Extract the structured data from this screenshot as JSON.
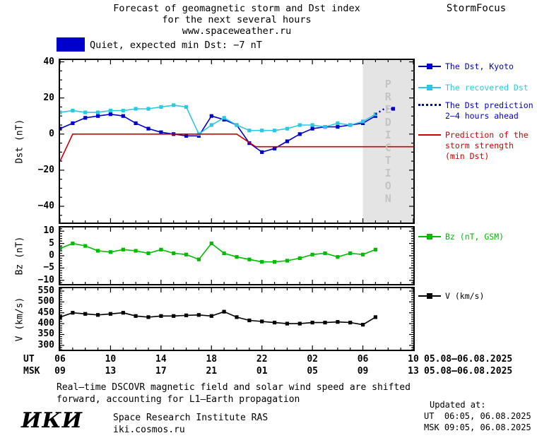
{
  "header": {
    "title_line1": "Forecast of geomagnetic storm and Dst index",
    "title_line2": "for the next several hours",
    "title_line3": "www.spaceweather.ru",
    "brand": "StormFocus"
  },
  "banner": {
    "swatch_color": "#0000cc",
    "text": "Quiet, expected min Dst: −7 nT"
  },
  "chart_data": [
    {
      "type": "line",
      "ylabel": "Dst (nT)",
      "xlim": [
        6,
        34
      ],
      "ylim": [
        -49,
        41
      ],
      "yticks": [
        40,
        20,
        0,
        -20,
        -40
      ],
      "yminor": 5,
      "xticks_hours": [
        6,
        10,
        14,
        18,
        22,
        26,
        30,
        34
      ],
      "prediction_band": {
        "x_start": 30,
        "x_end": 34,
        "label": "PREDICTION",
        "fill": "#e4e4e4",
        "label_color": "#c4c4c4"
      },
      "series": [
        {
          "name": "The Dst, Kyoto",
          "color": "#0000cc",
          "style": "line-square",
          "x": [
            6,
            7,
            8,
            9,
            10,
            11,
            12,
            13,
            14,
            15,
            16,
            17,
            18,
            19,
            20,
            21,
            22,
            23,
            24,
            25,
            26,
            27,
            28,
            29,
            30,
            31
          ],
          "y": [
            3,
            6,
            9,
            10,
            11,
            10,
            6,
            3,
            1,
            0,
            -1,
            -1,
            10,
            8,
            5,
            -5,
            -10,
            -8,
            -4,
            0,
            3,
            4,
            4,
            5,
            6,
            10
          ]
        },
        {
          "name": "The recovered Dst",
          "color": "#2bc8e4",
          "style": "line-square",
          "x": [
            6,
            7,
            8,
            9,
            10,
            11,
            12,
            13,
            14,
            15,
            16,
            17,
            18,
            19,
            20,
            21,
            22,
            23,
            24,
            25,
            26,
            27,
            28,
            29,
            30,
            31
          ],
          "y": [
            12,
            13,
            12,
            12,
            13,
            13,
            14,
            14,
            15,
            16,
            15,
            0,
            5,
            9,
            5,
            2,
            2,
            2,
            3,
            5,
            5,
            4,
            6,
            5,
            7,
            11
          ]
        },
        {
          "name": "The Dst prediction 2–4 hours ahead",
          "color": "#0000cc",
          "style": "dotted",
          "end_square": true,
          "x": [
            31,
            31.7,
            32.4
          ],
          "y": [
            11,
            14,
            14
          ]
        },
        {
          "name": "Prediction of the storm strength (min Dst)",
          "color": "#cc0000",
          "style": "line",
          "x": [
            6,
            7,
            20,
            21.5,
            34
          ],
          "y": [
            -15,
            0,
            0,
            -7,
            -7
          ]
        }
      ]
    },
    {
      "type": "line",
      "ylabel": "Bz (nT)",
      "xlim": [
        6,
        34
      ],
      "ylim": [
        -11.5,
        11.5
      ],
      "yticks": [
        10,
        5,
        0,
        -5,
        -10
      ],
      "yminor": 1,
      "xticks_hours": [
        6,
        10,
        14,
        18,
        22,
        26,
        30,
        34
      ],
      "series": [
        {
          "name": "Bz (nT, GSM)",
          "color": "#00bb00",
          "style": "line-square",
          "x": [
            6,
            7,
            8,
            9,
            10,
            11,
            12,
            13,
            14,
            15,
            16,
            17,
            18,
            19,
            20,
            21,
            22,
            23,
            24,
            25,
            26,
            27,
            28,
            29,
            30,
            31
          ],
          "y": [
            3,
            5,
            4,
            2,
            1.5,
            2.5,
            2,
            1,
            2.5,
            1,
            0.5,
            -1.5,
            5,
            1,
            -0.5,
            -1.5,
            -2.5,
            -2.5,
            -2,
            -1,
            0.5,
            1,
            -0.5,
            1,
            0.5,
            2.5
          ]
        }
      ]
    },
    {
      "type": "line",
      "ylabel": "V (km/s)",
      "xlim": [
        6,
        34
      ],
      "ylim": [
        280,
        563
      ],
      "yticks": [
        550,
        500,
        450,
        400,
        350,
        300
      ],
      "yminor": 10,
      "xticks_hours": [
        6,
        10,
        14,
        18,
        22,
        26,
        30,
        34
      ],
      "series": [
        {
          "name": "V (km/s)",
          "color": "#000000",
          "style": "line-square",
          "x": [
            6,
            7,
            8,
            9,
            10,
            11,
            12,
            13,
            14,
            15,
            16,
            17,
            18,
            19,
            20,
            21,
            22,
            23,
            24,
            25,
            26,
            27,
            28,
            29,
            30,
            31
          ],
          "y": [
            430,
            450,
            445,
            440,
            445,
            450,
            435,
            430,
            435,
            435,
            438,
            440,
            435,
            455,
            430,
            415,
            410,
            405,
            400,
            400,
            405,
            405,
            408,
            405,
            395,
            430
          ]
        }
      ]
    }
  ],
  "xaxis": {
    "ut_label": "UT",
    "msk_label": "MSK",
    "ut_ticks": [
      "06",
      "10",
      "14",
      "18",
      "22",
      "02",
      "06",
      "10"
    ],
    "msk_ticks": [
      "09",
      "13",
      "17",
      "21",
      "01",
      "05",
      "09",
      "13"
    ],
    "ut_dates": "05.08–06.08.2025",
    "msk_dates": "05.08–06.08.2025"
  },
  "footer": {
    "note_line1": "Real–time DSCOVR magnetic field and solar wind speed are shifted",
    "note_line2": "forward, accounting for L1–Earth propagation",
    "updated_label": "Updated at:",
    "updated_ut": "UT  06:05, 06.08.2025",
    "updated_msk": "MSK 09:05, 06.08.2025",
    "logo_text": "ИКИ",
    "institute": "Space Research Institute RAS",
    "website": "iki.cosmos.ru"
  }
}
